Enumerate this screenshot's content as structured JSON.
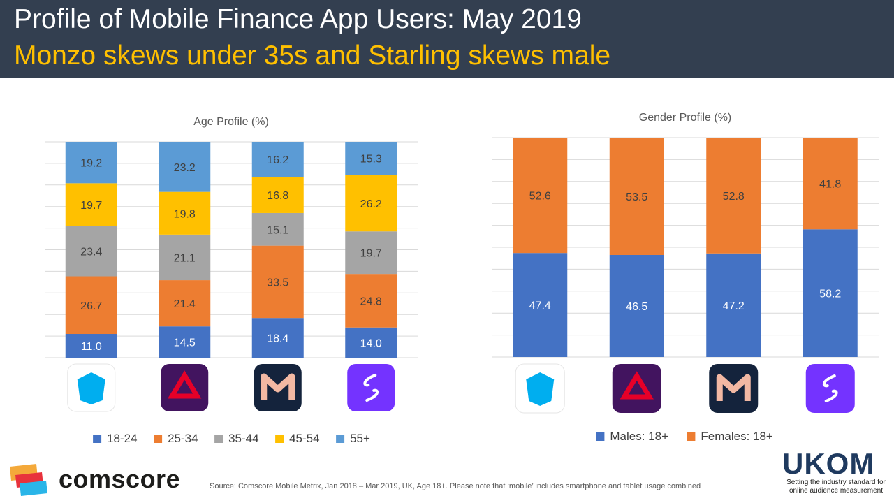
{
  "header": {
    "title": "Profile of Mobile Finance App Users: May 2019",
    "subtitle": "Monzo skews under 35s and Starling skews male"
  },
  "chart_data": [
    {
      "type": "bar",
      "stacked": true,
      "title": "Age Profile (%)",
      "categories": [
        "Barclays",
        "NatWest",
        "Monzo",
        "Starling"
      ],
      "series": [
        {
          "name": "18-24",
          "values": [
            11.0,
            14.5,
            18.4,
            14.0
          ],
          "color": "#4472c4"
        },
        {
          "name": "25-34",
          "values": [
            26.7,
            21.4,
            33.5,
            24.8
          ],
          "color": "#ed7d31"
        },
        {
          "name": "35-44",
          "values": [
            23.4,
            21.1,
            15.1,
            19.7
          ],
          "color": "#a5a5a5"
        },
        {
          "name": "45-54",
          "values": [
            19.7,
            19.8,
            16.8,
            26.2
          ],
          "color": "#ffc000"
        },
        {
          "name": "55+",
          "values": [
            19.2,
            23.2,
            16.2,
            15.3
          ],
          "color": "#5b9bd5"
        }
      ],
      "ylim": [
        0,
        100
      ],
      "grid": true,
      "legend": "bottom"
    },
    {
      "type": "bar",
      "stacked": true,
      "title": "Gender Profile (%)",
      "categories": [
        "Barclays",
        "NatWest",
        "Monzo",
        "Starling"
      ],
      "series": [
        {
          "name": "Males: 18+",
          "values": [
            47.4,
            46.5,
            47.2,
            58.2
          ],
          "color": "#4472c4"
        },
        {
          "name": "Females: 18+",
          "values": [
            52.6,
            53.5,
            52.8,
            41.8
          ],
          "color": "#ed7d31"
        }
      ],
      "ylim": [
        0,
        100
      ],
      "grid": true,
      "legend": "bottom"
    }
  ],
  "footer": {
    "source": "Source: Comscore Mobile Metrix, Jan 2018 – Mar 2019, UK, Age 18+. Please note that ‘mobile’ includes smartphone and tablet usage combined",
    "comscore_logo_text": "comscore",
    "ukom_logo_text": "UKOM",
    "ukom_tagline": "Setting the industry standard for online audience measurement"
  }
}
